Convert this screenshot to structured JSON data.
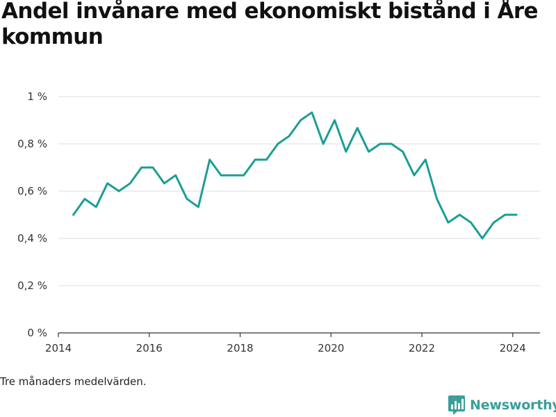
{
  "chart_data": {
    "type": "line",
    "title": "Andel invånare med ekonomiskt bistånd i Åre kommun",
    "xlabel": "",
    "ylabel": "",
    "ylim": [
      0,
      1
    ],
    "xlim": [
      2014,
      2024.6
    ],
    "yticks": [
      {
        "value": 0,
        "label": "0 %"
      },
      {
        "value": 0.2,
        "label": "0,2 %"
      },
      {
        "value": 0.4,
        "label": "0,4 %"
      },
      {
        "value": 0.6,
        "label": "0,6 %"
      },
      {
        "value": 0.8,
        "label": "0,8 %"
      },
      {
        "value": 1,
        "label": "1 %"
      }
    ],
    "xticks": [
      {
        "value": 2014,
        "label": "2014"
      },
      {
        "value": 2016,
        "label": "2016"
      },
      {
        "value": 2018,
        "label": "2018"
      },
      {
        "value": 2020,
        "label": "2020"
      },
      {
        "value": 2022,
        "label": "2022"
      },
      {
        "value": 2024,
        "label": "2024"
      }
    ],
    "grid": "horizontal",
    "color": "#1a9e96",
    "series": [
      {
        "x": [
          2014.33,
          2014.58,
          2014.83,
          2015.08,
          2015.33,
          2015.58,
          2015.83,
          2016.08,
          2016.33,
          2016.58,
          2016.83,
          2017.08,
          2017.33,
          2017.58,
          2017.83,
          2018.08,
          2018.33,
          2018.58,
          2018.83,
          2019.08,
          2019.33,
          2019.58,
          2019.83,
          2020.08,
          2020.33,
          2020.58,
          2020.83,
          2021.08,
          2021.33,
          2021.58,
          2021.83,
          2022.08,
          2022.33,
          2022.58,
          2022.83,
          2023.08,
          2023.33,
          2023.58,
          2023.83,
          2024.08
        ],
        "values": [
          0.5,
          0.567,
          0.533,
          0.633,
          0.6,
          0.633,
          0.7,
          0.7,
          0.633,
          0.667,
          0.567,
          0.533,
          0.733,
          0.667,
          0.667,
          0.667,
          0.733,
          0.733,
          0.8,
          0.833,
          0.9,
          0.933,
          0.8,
          0.9,
          0.767,
          0.867,
          0.767,
          0.8,
          0.8,
          0.767,
          0.667,
          0.733,
          0.567,
          0.467,
          0.5,
          0.467,
          0.4,
          0.467,
          0.5,
          0.5
        ]
      }
    ]
  },
  "note": "Tre månaders medelvärden.",
  "brand": {
    "name": "Newsworthy",
    "color": "#3a9e9b",
    "icon": "bar-chart-icon"
  }
}
